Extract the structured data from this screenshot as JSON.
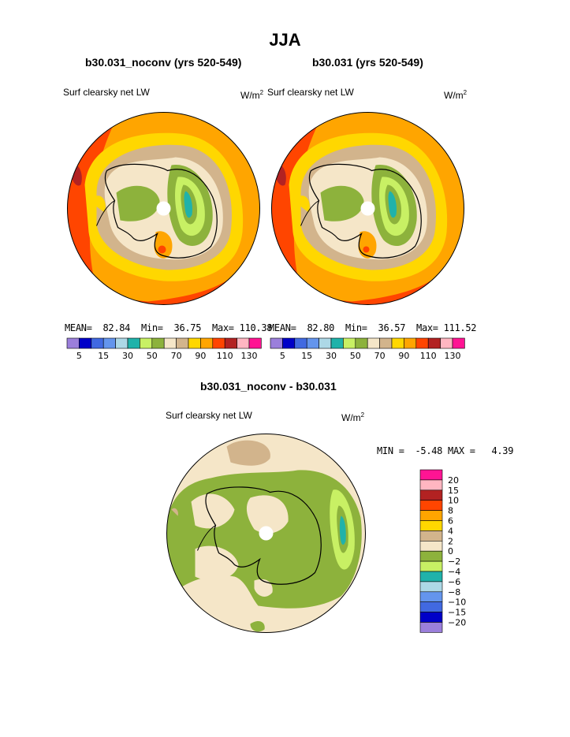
{
  "season_title": "JJA",
  "units": "W/m",
  "units_exp": "2",
  "panels": [
    {
      "case": "b30.031_noconv (yrs 520-549)",
      "field": "Surf clearsky net LW",
      "stats": {
        "mean_label": "MEAN=",
        "mean": "82.84",
        "min_label": "Min=",
        "min": "36.75",
        "max_label": "Max=",
        "max": "110.38"
      }
    },
    {
      "case": "b30.031 (yrs 520-549)",
      "field": "Surf clearsky net LW",
      "stats": {
        "mean_label": "MEAN=",
        "mean": "82.80",
        "min_label": "Min=",
        "min": "36.57",
        "max_label": "Max=",
        "max": "111.52"
      }
    }
  ],
  "diff": {
    "title": "b30.031_noconv - b30.031",
    "field": "Surf clearsky net LW",
    "min_label": "MIN =",
    "min": "-5.48",
    "max_label": "MAX =",
    "max": "4.39"
  },
  "chart_data": [
    {
      "type": "heatmap",
      "projection": "south-polar-stereographic",
      "title": "b30.031_noconv (yrs 520-549)",
      "variable": "Surf clearsky net LW",
      "units": "W/m2",
      "levels": [
        5,
        10,
        15,
        20,
        30,
        40,
        50,
        60,
        70,
        80,
        90,
        100,
        110,
        120,
        130
      ],
      "colors": [
        "#9b7fdb",
        "#0000c8",
        "#4169e1",
        "#6495ed",
        "#add8e6",
        "#20b2aa",
        "#c8f064",
        "#8db23c",
        "#f5e6c8",
        "#d2b48c",
        "#ffd700",
        "#ffa500",
        "#ff4500",
        "#b22222",
        "#ffb6c1",
        "#ff1493"
      ],
      "tick_labels": [
        "5",
        "15",
        "30",
        "50",
        "70",
        "90",
        "110",
        "130"
      ],
      "stats": {
        "mean": 82.84,
        "min": 36.75,
        "max": 110.38
      }
    },
    {
      "type": "heatmap",
      "projection": "south-polar-stereographic",
      "title": "b30.031 (yrs 520-549)",
      "variable": "Surf clearsky net LW",
      "units": "W/m2",
      "levels": [
        5,
        10,
        15,
        20,
        30,
        40,
        50,
        60,
        70,
        80,
        90,
        100,
        110,
        120,
        130
      ],
      "colors": [
        "#9b7fdb",
        "#0000c8",
        "#4169e1",
        "#6495ed",
        "#add8e6",
        "#20b2aa",
        "#c8f064",
        "#8db23c",
        "#f5e6c8",
        "#d2b48c",
        "#ffd700",
        "#ffa500",
        "#ff4500",
        "#b22222",
        "#ffb6c1",
        "#ff1493"
      ],
      "tick_labels": [
        "5",
        "15",
        "30",
        "50",
        "70",
        "90",
        "110",
        "130"
      ],
      "stats": {
        "mean": 82.8,
        "min": 36.57,
        "max": 111.52
      }
    },
    {
      "type": "heatmap",
      "projection": "south-polar-stereographic",
      "title": "b30.031_noconv - b30.031",
      "variable": "Surf clearsky net LW",
      "units": "W/m2",
      "levels": [
        20,
        15,
        10,
        8,
        6,
        4,
        2,
        0,
        -2,
        -4,
        -6,
        -8,
        -10,
        -15,
        -20
      ],
      "colors": [
        "#ff1493",
        "#ffb6c1",
        "#b22222",
        "#ff4500",
        "#ffa500",
        "#ffd700",
        "#d2b48c",
        "#f5e6c8",
        "#8db23c",
        "#c8f064",
        "#20b2aa",
        "#add8e6",
        "#6495ed",
        "#4169e1",
        "#0000c8",
        "#9b7fdb"
      ],
      "tick_labels": [
        "20",
        "15",
        "10",
        "8",
        "6",
        "4",
        "2",
        "0",
        "−2",
        "−4",
        "−6",
        "−8",
        "−10",
        "−15",
        "−20"
      ],
      "stats": {
        "min": -5.48,
        "max": 4.39
      }
    }
  ]
}
